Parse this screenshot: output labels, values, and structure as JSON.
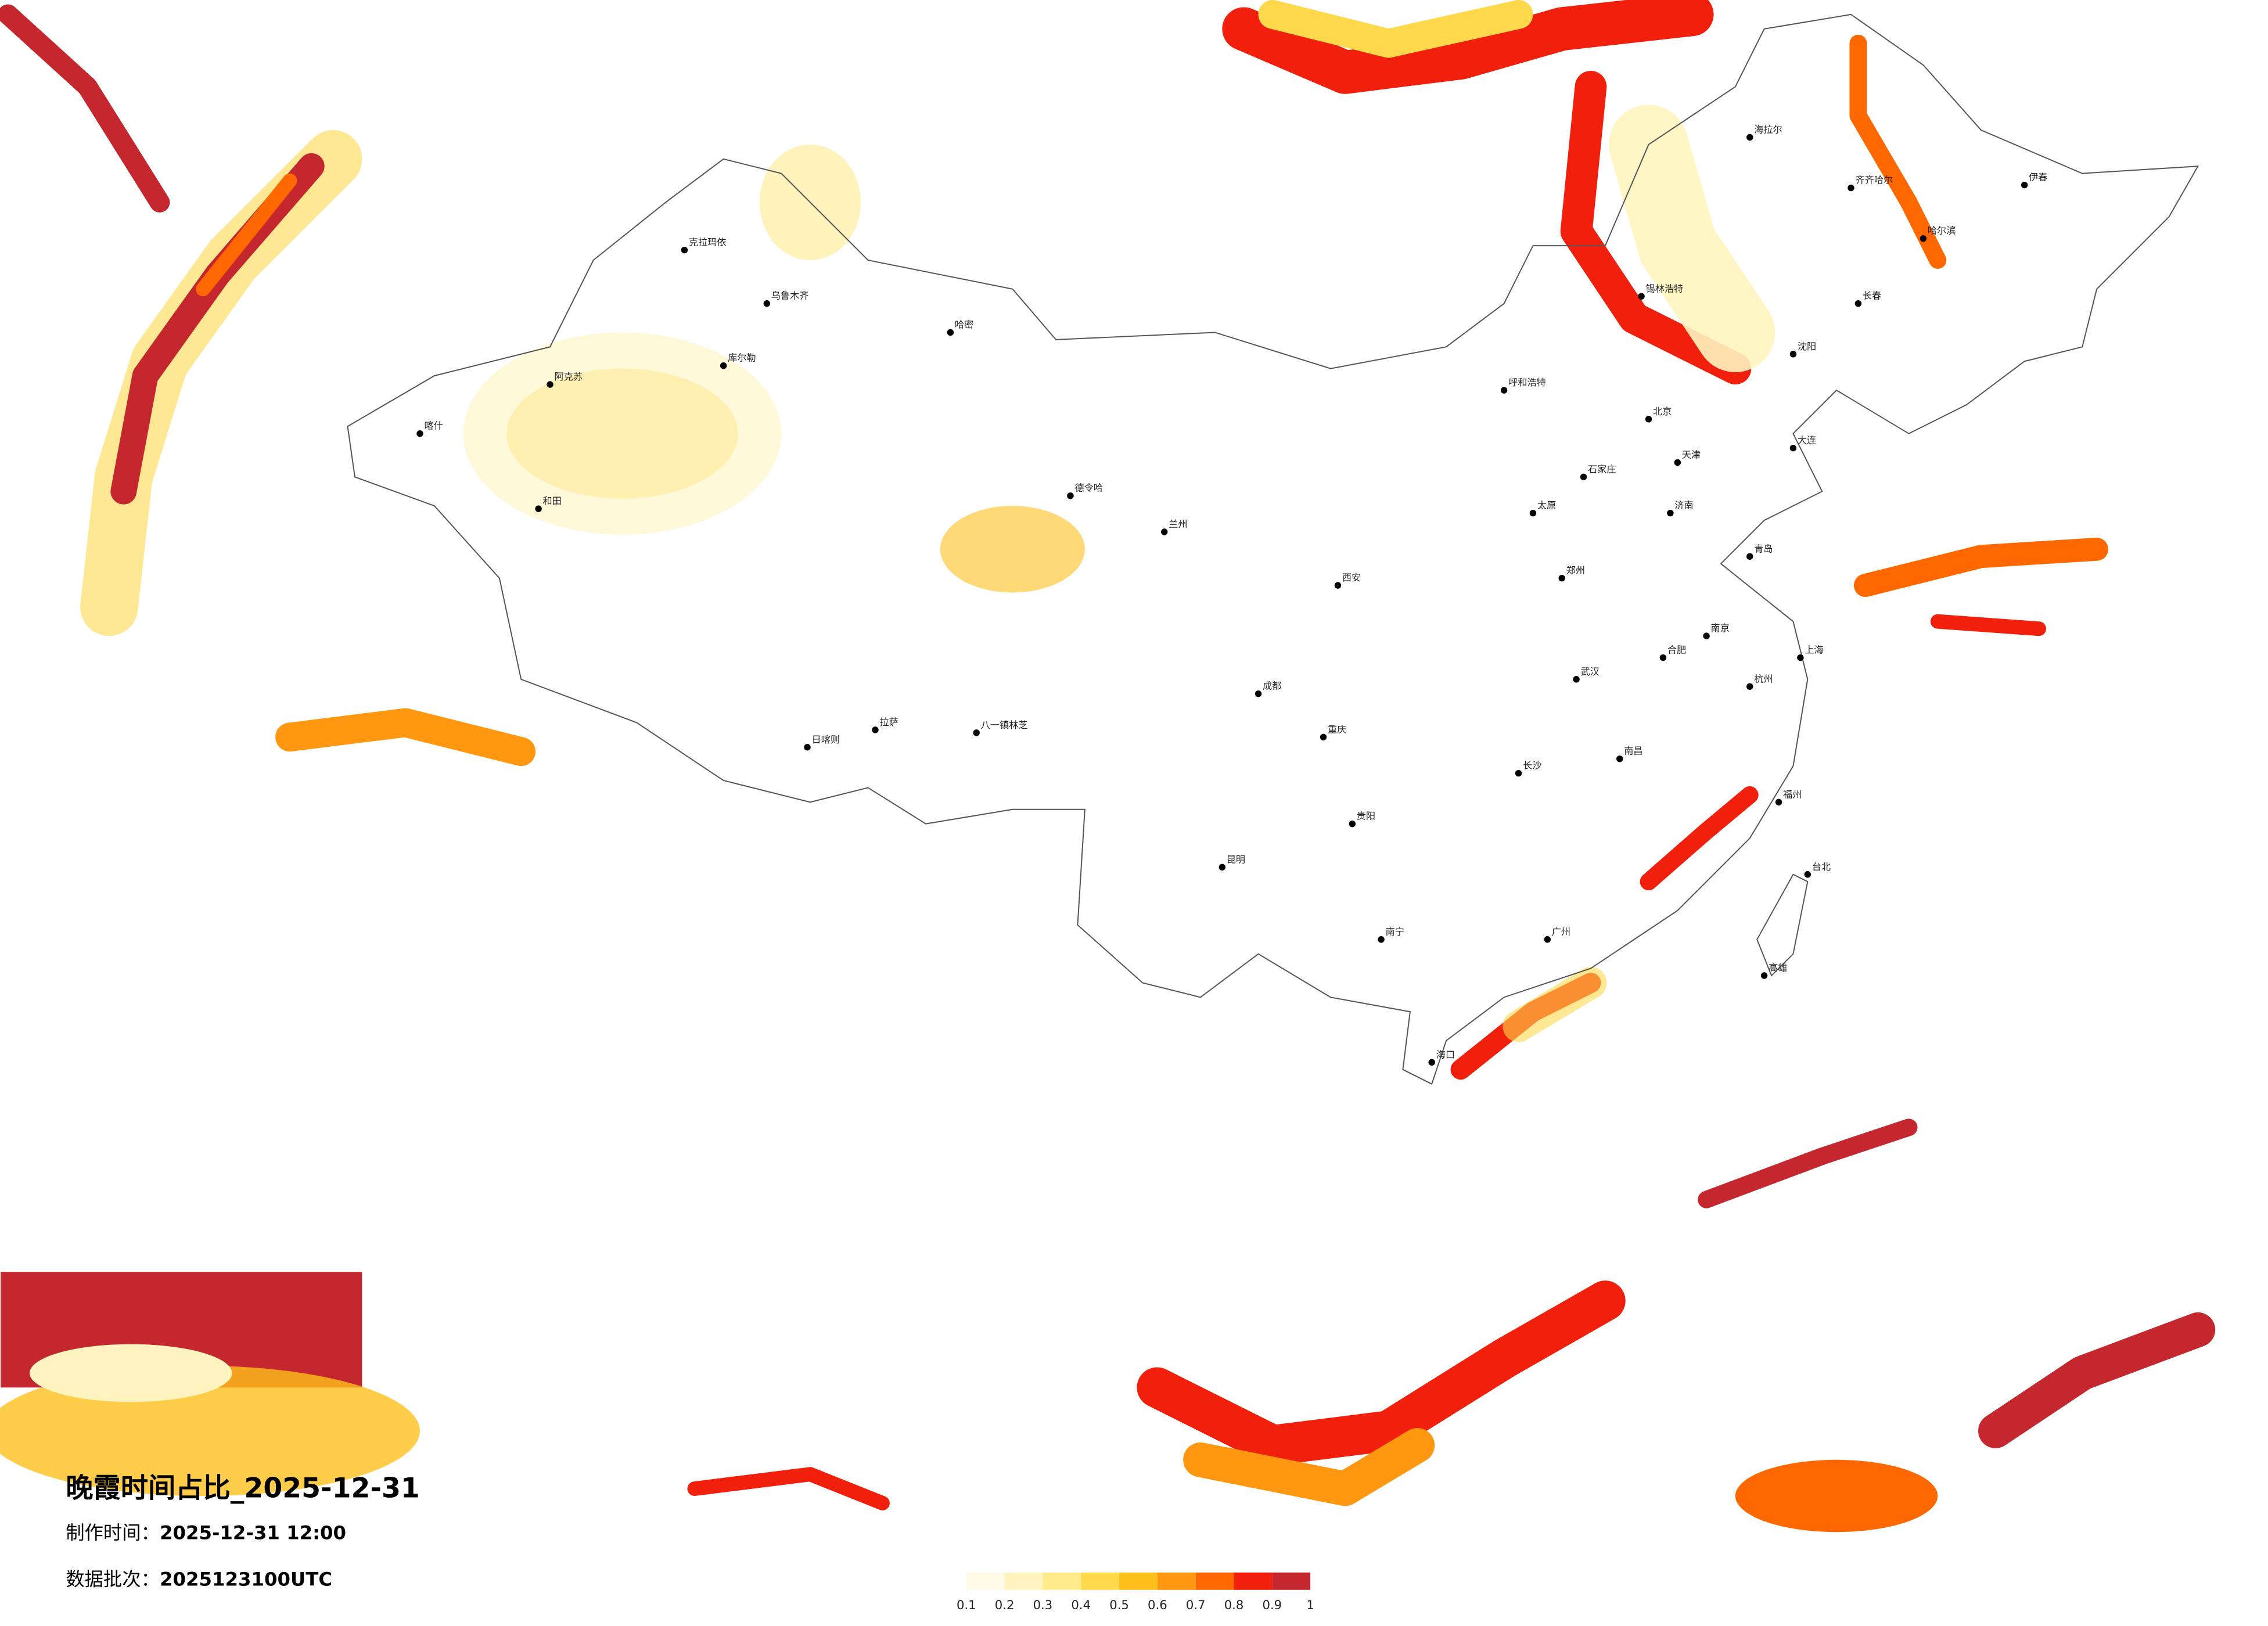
{
  "title": "晚霞时间占比_2025-12-31",
  "production_time": {
    "label": "制作时间：",
    "value": "2025-12-31 12:00"
  },
  "data_batch": {
    "label": "数据批次：",
    "value": "2025123100UTC"
  },
  "legend": {
    "ticks": [
      0.1,
      0.2,
      0.3,
      0.4,
      0.5,
      0.6,
      0.7,
      0.8,
      0.9,
      1
    ],
    "colors": [
      "#fffbe6",
      "#fff4bf",
      "#ffea8c",
      "#ffd84c",
      "#ffc01c",
      "#ff9810",
      "#ff6800",
      "#f0200c",
      "#c4282e"
    ]
  },
  "cities": [
    "克拉玛依",
    "乌鲁木齐",
    "哈密",
    "喀什",
    "和田",
    "阿克苏",
    "库尔勒",
    "日喀则",
    "拉萨",
    "八一镇林芝",
    "德令哈",
    "兰州",
    "呼和浩特",
    "北京",
    "天津",
    "石家庄",
    "太原",
    "济南",
    "郑州",
    "西安",
    "成都",
    "重庆",
    "贵阳",
    "昆明",
    "南宁",
    "广州",
    "海口",
    "长沙",
    "武汉",
    "南昌",
    "福州",
    "杭州",
    "上海",
    "南京",
    "合肥",
    "沈阳",
    "长春",
    "哈尔滨",
    "齐齐哈尔",
    "海拉尔",
    "台北",
    "高雄",
    "锡林浩特",
    "伊春",
    "大连",
    "青岛"
  ]
}
